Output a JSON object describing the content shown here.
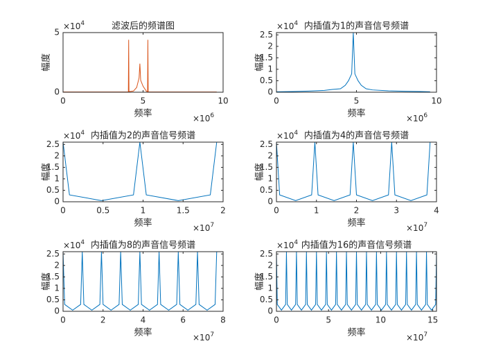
{
  "chart_data": [
    {
      "type": "line",
      "title": "滤波后的频谱图",
      "xlabel": "频率",
      "ylabel": "幅度",
      "x_multiplier": {
        "base": "×10",
        "exponent": "6"
      },
      "y_multiplier": {
        "base": "×10",
        "exponent": "4"
      },
      "xlim": [
        0,
        10
      ],
      "xticks": [
        0,
        5,
        10
      ],
      "ylim": [
        0,
        5
      ],
      "yticks": [
        0,
        5
      ],
      "color": "#d95319",
      "x": [
        0,
        4.08,
        4.1,
        4.12,
        4.4,
        4.6,
        4.75,
        4.8,
        4.85,
        5.0,
        5.2,
        5.28,
        5.3,
        5.32,
        9.6
      ],
      "values": [
        0.02,
        0.02,
        4.4,
        0.05,
        0.1,
        0.4,
        1.2,
        2.4,
        1.0,
        0.5,
        0.1,
        0.02,
        4.4,
        0.02,
        0.02
      ]
    },
    {
      "type": "line",
      "title": "内插值为1的声音信号频谱",
      "xlabel": "频率",
      "ylabel": "幅度",
      "x_multiplier": {
        "base": "×10",
        "exponent": "6"
      },
      "y_multiplier": {
        "base": "×10",
        "exponent": "4"
      },
      "xlim": [
        0,
        10
      ],
      "xticks": [
        0,
        5,
        10
      ],
      "ylim": [
        0,
        2.6
      ],
      "yticks": [
        0,
        0.5,
        1,
        1.5,
        2,
        2.5
      ],
      "color": "#0072bd",
      "x": [
        0,
        1,
        2,
        3,
        3.5,
        4,
        4.3,
        4.5,
        4.7,
        4.8,
        4.9,
        5.1,
        5.3,
        5.6,
        6,
        7,
        8,
        9,
        9.6
      ],
      "values": [
        0.02,
        0.03,
        0.05,
        0.08,
        0.12,
        0.15,
        0.3,
        0.5,
        0.8,
        2.6,
        0.8,
        0.5,
        0.3,
        0.15,
        0.1,
        0.06,
        0.04,
        0.03,
        0.02
      ]
    },
    {
      "type": "line",
      "title": "内插值为2的声音信号频谱",
      "xlabel": "频率",
      "ylabel": "幅度",
      "x_multiplier": {
        "base": "×10",
        "exponent": "7"
      },
      "y_multiplier": {
        "base": "×10",
        "exponent": "4"
      },
      "xlim": [
        0,
        2
      ],
      "xticks": [
        0,
        0.5,
        1,
        1.5,
        2
      ],
      "ylim": [
        0,
        2.6
      ],
      "yticks": [
        0,
        0.5,
        1,
        1.5,
        2,
        2.5
      ],
      "color": "#0072bd",
      "x": [
        0,
        0.08,
        0.48,
        0.88,
        0.96,
        1.04,
        1.44,
        1.84,
        1.92
      ],
      "values": [
        2.6,
        0.3,
        0.05,
        0.3,
        2.6,
        0.3,
        0.05,
        0.3,
        2.6
      ]
    },
    {
      "type": "line",
      "title": "内插值为4的声音信号频谱",
      "xlabel": "频率",
      "ylabel": "幅度",
      "x_multiplier": {
        "base": "×10",
        "exponent": "7"
      },
      "y_multiplier": {
        "base": "×10",
        "exponent": "4"
      },
      "xlim": [
        0,
        4
      ],
      "xticks": [
        0,
        1,
        2,
        3,
        4
      ],
      "ylim": [
        0,
        2.6
      ],
      "yticks": [
        0,
        0.5,
        1,
        1.5,
        2,
        2.5
      ],
      "color": "#0072bd",
      "x": [
        0,
        0.08,
        0.48,
        0.88,
        0.96,
        1.04,
        1.44,
        1.84,
        1.92,
        2,
        2.4,
        2.8,
        2.88,
        2.96,
        3.36,
        3.76,
        3.84
      ],
      "values": [
        2.6,
        0.3,
        0.05,
        0.3,
        2.6,
        0.3,
        0.05,
        0.3,
        2.6,
        0.3,
        0.05,
        0.3,
        2.6,
        0.3,
        0.05,
        0.3,
        2.6
      ]
    },
    {
      "type": "line",
      "title": "内插值为8的声音信号频谱",
      "xlabel": "频率",
      "ylabel": "幅度",
      "x_multiplier": {
        "base": "×10",
        "exponent": "7"
      },
      "y_multiplier": {
        "base": "×10",
        "exponent": "4"
      },
      "xlim": [
        0,
        8
      ],
      "xticks": [
        0,
        2,
        4,
        6,
        8
      ],
      "ylim": [
        0,
        2.6
      ],
      "yticks": [
        0,
        0.5,
        1,
        1.5,
        2,
        2.5
      ],
      "color": "#0072bd",
      "x": [
        0,
        0.08,
        0.48,
        0.88,
        0.96,
        1.04,
        1.44,
        1.84,
        1.92,
        2,
        2.4,
        2.8,
        2.88,
        2.96,
        3.36,
        3.76,
        3.84,
        3.92,
        4.32,
        4.72,
        4.8,
        4.88,
        5.28,
        5.68,
        5.76,
        5.84,
        6.24,
        6.64,
        6.72,
        6.8,
        7.2,
        7.6,
        7.68
      ],
      "values": [
        2.6,
        0.3,
        0.05,
        0.3,
        2.6,
        0.3,
        0.05,
        0.3,
        2.6,
        0.3,
        0.05,
        0.3,
        2.6,
        0.3,
        0.05,
        0.3,
        2.6,
        0.3,
        0.05,
        0.3,
        2.6,
        0.3,
        0.05,
        0.3,
        2.6,
        0.3,
        0.05,
        0.3,
        2.6,
        0.3,
        0.05,
        0.3,
        2.6
      ]
    },
    {
      "type": "line",
      "title": "内插值为16的声音信号频谱",
      "xlabel": "频率",
      "ylabel": "幅度",
      "x_multiplier": {
        "base": "×10",
        "exponent": "7"
      },
      "y_multiplier": {
        "base": "×10",
        "exponent": "4"
      },
      "xlim": [
        0,
        15.36
      ],
      "xticks": [
        0,
        5,
        10,
        15
      ],
      "ylim": [
        0,
        2.6
      ],
      "yticks": [
        0,
        0.5,
        1,
        1.5,
        2,
        2.5
      ],
      "color": "#0072bd",
      "x": [
        0,
        0.08,
        0.48,
        0.88,
        0.96,
        1.04,
        1.44,
        1.84,
        1.92,
        2,
        2.4,
        2.8,
        2.88,
        2.96,
        3.36,
        3.76,
        3.84,
        3.92,
        4.32,
        4.72,
        4.8,
        4.88,
        5.28,
        5.68,
        5.76,
        5.84,
        6.24,
        6.64,
        6.72,
        6.8,
        7.2,
        7.6,
        7.68,
        7.76,
        8.16,
        8.56,
        8.64,
        8.72,
        9.12,
        9.52,
        9.6,
        9.68,
        10.08,
        10.48,
        10.56,
        10.64,
        11.04,
        11.44,
        11.52,
        11.6,
        12,
        12.4,
        12.48,
        12.56,
        12.96,
        13.36,
        13.44,
        13.52,
        13.92,
        14.32,
        14.4,
        14.48,
        14.88,
        15.28,
        15.36
      ],
      "values": [
        2.6,
        0.3,
        0.05,
        0.3,
        2.6,
        0.3,
        0.05,
        0.3,
        2.6,
        0.3,
        0.05,
        0.3,
        2.6,
        0.3,
        0.05,
        0.3,
        2.6,
        0.3,
        0.05,
        0.3,
        2.6,
        0.3,
        0.05,
        0.3,
        2.6,
        0.3,
        0.05,
        0.3,
        2.6,
        0.3,
        0.05,
        0.3,
        2.6,
        0.3,
        0.05,
        0.3,
        2.6,
        0.3,
        0.05,
        0.3,
        2.6,
        0.3,
        0.05,
        0.3,
        2.6,
        0.3,
        0.05,
        0.3,
        2.6,
        0.3,
        0.05,
        0.3,
        2.6,
        0.3,
        0.05,
        0.3,
        2.6,
        0.3,
        0.05,
        0.3,
        2.6,
        0.3,
        0.05,
        0.3,
        2.6
      ]
    }
  ]
}
